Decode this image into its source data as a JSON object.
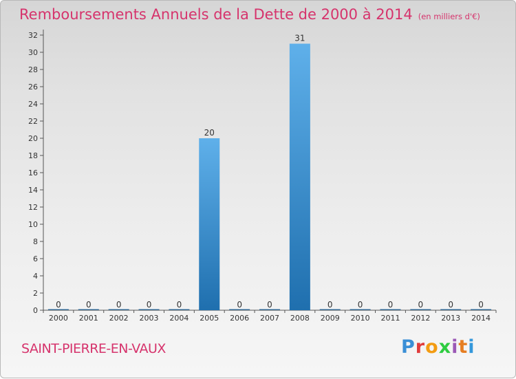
{
  "title": {
    "main": "Remboursements Annuels de la Dette de 2000 à 2014",
    "unit": "(en milliers d'€)"
  },
  "place_name": "SAINT-PIERRE-EN-VAUX",
  "logo": {
    "text": "Proxiti",
    "colors": [
      "#3a8fd6",
      "#e03c3c",
      "#f39c12",
      "#2ecc40",
      "#9b59b6",
      "#e67e22",
      "#3498db"
    ]
  },
  "colors": {
    "title": "#d6336c",
    "bar_top": "#5fb0ea",
    "bar_bottom": "#1f6fae",
    "axis": "#555555"
  },
  "chart_data": {
    "type": "bar",
    "categories": [
      "2000",
      "2001",
      "2002",
      "2003",
      "2004",
      "2005",
      "2006",
      "2007",
      "2008",
      "2009",
      "2010",
      "2011",
      "2012",
      "2013",
      "2014"
    ],
    "values": [
      0,
      0,
      0,
      0,
      0,
      20,
      0,
      0,
      31,
      0,
      0,
      0,
      0,
      0,
      0
    ],
    "data_labels": [
      "0",
      "0",
      "0",
      "0",
      "0",
      "20",
      "0",
      "0",
      "31",
      "0",
      "0",
      "0",
      "0",
      "0",
      "0"
    ],
    "yticks": [
      0,
      2,
      4,
      6,
      8,
      10,
      12,
      14,
      16,
      18,
      20,
      22,
      24,
      26,
      28,
      30,
      32
    ],
    "ylim": [
      0,
      32
    ],
    "grid": false,
    "legend": "none"
  }
}
